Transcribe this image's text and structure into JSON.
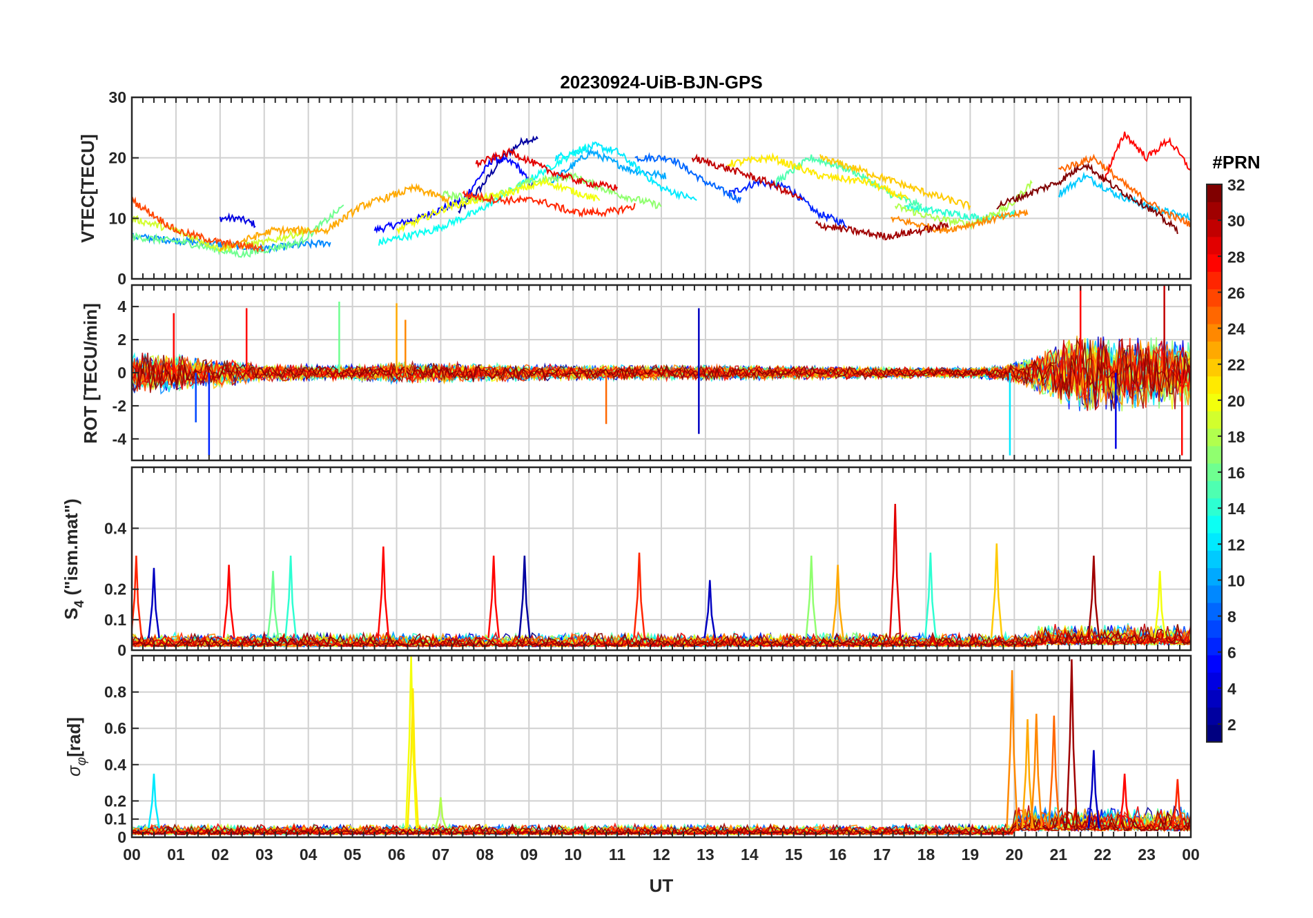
{
  "chart_data": {
    "type": "line",
    "title": "20230924-UiB-BJN-GPS",
    "xlabel": "UT",
    "x_range_hours": [
      0,
      24
    ],
    "x_tick_labels": [
      "00",
      "01",
      "02",
      "03",
      "04",
      "05",
      "06",
      "07",
      "08",
      "09",
      "10",
      "11",
      "12",
      "13",
      "14",
      "15",
      "16",
      "17",
      "18",
      "19",
      "20",
      "21",
      "22",
      "23",
      "00"
    ],
    "grid": true,
    "colorbar": {
      "label": "#PRN",
      "range": [
        1,
        32
      ],
      "tick_labels": [
        "2",
        "4",
        "6",
        "8",
        "10",
        "12",
        "14",
        "16",
        "18",
        "20",
        "22",
        "24",
        "26",
        "28",
        "30",
        "32"
      ],
      "colormap": "jet"
    },
    "panels": [
      {
        "id": "vtec",
        "ylabel": "VTEC[TECU]",
        "ylim": [
          0,
          30
        ],
        "y_ticks": [
          0,
          10,
          20,
          30
        ],
        "y_tick_labels": [
          "0",
          "10",
          "20",
          "30"
        ],
        "series": [
          {
            "prn": 2,
            "x": [
              7.4,
              7.9,
              8.4,
              8.9,
              9.2
            ],
            "y": [
              11,
              15,
              20,
              23,
              23
            ]
          },
          {
            "prn": 4,
            "x": [
              2.0,
              2.4,
              2.8
            ],
            "y": [
              10,
              10,
              9
            ]
          },
          {
            "prn": 5,
            "x": [
              5.5,
              6.5,
              7.5,
              8.2,
              8.7,
              9.1
            ],
            "y": [
              8,
              10,
              13,
              20,
              19,
              15
            ]
          },
          {
            "prn": 6,
            "x": [
              13.5,
              14.2,
              14.9,
              15.5,
              16.2
            ],
            "y": [
              14,
              16,
              15,
              11,
              9
            ]
          },
          {
            "prn": 8,
            "x": [
              11.4,
              12.2,
              13.0,
              13.8
            ],
            "y": [
              20,
              20,
              16,
              13
            ]
          },
          {
            "prn": 9,
            "x": [
              0.0,
              1.5,
              3.0,
              4.5
            ],
            "y": [
              7,
              6,
              5,
              6
            ]
          },
          {
            "prn": 10,
            "x": [
              9.5,
              10.4,
              11.3,
              12.1
            ],
            "y": [
              16,
              21,
              18,
              17
            ]
          },
          {
            "prn": 11,
            "x": [
              21.0,
              21.6,
              22.3,
              23.0,
              24.0
            ],
            "y": [
              14,
              17,
              14,
              12,
              10
            ]
          },
          {
            "prn": 12,
            "x": [
              9.6,
              10.5,
              11.0,
              12.0,
              12.8
            ],
            "y": [
              20,
              22,
              21,
              15,
              13
            ]
          },
          {
            "prn": 13,
            "x": [
              5.6,
              6.8,
              7.8,
              8.7,
              9.6,
              10.3
            ],
            "y": [
              6,
              8,
              11,
              15,
              19,
              22
            ]
          },
          {
            "prn": 14,
            "x": [
              17.5,
              18.4,
              19.3,
              20.0
            ],
            "y": [
              12,
              11,
              10,
              11
            ]
          },
          {
            "prn": 15,
            "x": [
              14.6,
              15.4,
              16.3,
              17.2,
              17.9
            ],
            "y": [
              16,
              20,
              18,
              14,
              12
            ]
          },
          {
            "prn": 16,
            "x": [
              0.0,
              1.2,
              2.5,
              3.8,
              4.8
            ],
            "y": [
              7,
              6,
              4,
              6,
              12
            ]
          },
          {
            "prn": 17,
            "x": [
              7.0,
              8.0,
              9.0,
              10.0,
              11.0,
              12.0
            ],
            "y": [
              14,
              13,
              16,
              17,
              14,
              12
            ]
          },
          {
            "prn": 18,
            "x": [
              17.3,
              18.2,
              19.0,
              19.9,
              20.4
            ],
            "y": [
              12,
              10,
              9,
              12,
              16
            ]
          },
          {
            "prn": 19,
            "x": [
              0.0,
              1.0,
              2.0,
              3.0,
              4.0
            ],
            "y": [
              10,
              8,
              5,
              6,
              8
            ]
          },
          {
            "prn": 20,
            "x": [
              6.0,
              7.2,
              8.4,
              9.4,
              10.6
            ],
            "y": [
              8,
              12,
              14,
              16,
              13
            ]
          },
          {
            "prn": 21,
            "x": [
              13.5,
              14.5,
              15.6,
              16.7,
              17.6
            ],
            "y": [
              19,
              20,
              17,
              16,
              13
            ]
          },
          {
            "prn": 22,
            "x": [
              15.6,
              16.5,
              17.3,
              18.1,
              19.0
            ],
            "y": [
              20,
              18,
              16,
              14,
              12
            ]
          },
          {
            "prn": 23,
            "x": [
              2.0,
              3.2,
              4.4,
              5.2,
              6.4,
              7.2
            ],
            "y": [
              5,
              8,
              8,
              12,
              15,
              13
            ]
          },
          {
            "prn": 24,
            "x": [
              17.2,
              18.4,
              19.6,
              20.3
            ],
            "y": [
              10,
              8,
              10,
              11
            ]
          },
          {
            "prn": 25,
            "x": [
              21.0,
              21.8,
              22.6,
              23.4,
              24.0
            ],
            "y": [
              18,
              20,
              15,
              11,
              9
            ]
          },
          {
            "prn": 26,
            "x": [
              0.0,
              1.0,
              2.0,
              3.0
            ],
            "y": [
              13,
              8,
              6,
              5
            ]
          },
          {
            "prn": 27,
            "x": [
              7.5,
              8.3,
              9.2,
              10.0,
              10.8,
              11.4
            ],
            "y": [
              14,
              13,
              13,
              11,
              11,
              12
            ]
          },
          {
            "prn": 28,
            "x": [
              22.0,
              22.5,
              23.0,
              23.5,
              24.0
            ],
            "y": [
              16,
              24,
              20,
              23,
              18
            ]
          },
          {
            "prn": 29,
            "x": [
              7.8,
              8.6,
              9.4,
              10.2,
              11.0
            ],
            "y": [
              19,
              21,
              18,
              16,
              15
            ]
          },
          {
            "prn": 30,
            "x": [
              12.7,
              13.6,
              14.4,
              15.2
            ],
            "y": [
              20,
              18,
              16,
              13
            ]
          },
          {
            "prn": 31,
            "x": [
              15.5,
              16.3,
              17.1,
              17.9,
              18.5
            ],
            "y": [
              9,
              8,
              7,
              8,
              9
            ]
          },
          {
            "prn": 32,
            "x": [
              19.6,
              20.3,
              21.0,
              21.6,
              22.3,
              23.0,
              23.7
            ],
            "y": [
              12,
              14,
              16,
              19,
              15,
              12,
              8
            ]
          }
        ]
      },
      {
        "id": "rot",
        "ylabel": "ROT [TECU/min]",
        "ylim": [
          -5.3,
          5.3
        ],
        "y_ticks": [
          -4,
          -2,
          0,
          2,
          4
        ],
        "y_tick_labels": [
          "-4",
          "-2",
          "0",
          "2",
          "4"
        ],
        "noise_profile": {
          "hours": [
            0,
            1,
            2,
            3,
            5,
            6,
            8,
            10,
            13,
            17,
            19,
            19.8,
            20.5,
            21,
            21.5,
            22,
            23,
            24
          ],
          "amplitude": [
            1.4,
            1.2,
            0.9,
            0.6,
            0.5,
            0.7,
            0.6,
            0.5,
            0.5,
            0.4,
            0.35,
            0.5,
            1.2,
            2.0,
            2.6,
            2.4,
            2.4,
            2.2
          ]
        },
        "spikes": [
          {
            "x": 0.95,
            "y": 3.6,
            "prn": 28
          },
          {
            "x": 1.45,
            "y": -3.0,
            "prn": 7
          },
          {
            "x": 1.75,
            "y": -5.0,
            "prn": 6
          },
          {
            "x": 2.6,
            "y": 3.9,
            "prn": 28
          },
          {
            "x": 4.7,
            "y": 4.3,
            "prn": 16
          },
          {
            "x": 6.0,
            "y": 4.2,
            "prn": 23
          },
          {
            "x": 6.2,
            "y": 3.2,
            "prn": 24
          },
          {
            "x": 12.85,
            "y": 3.9,
            "prn": 3
          },
          {
            "x": 12.85,
            "y": -3.7,
            "prn": 3
          },
          {
            "x": 10.75,
            "y": -3.1,
            "prn": 25
          },
          {
            "x": 19.9,
            "y": -5.0,
            "prn": 12
          },
          {
            "x": 21.5,
            "y": 5.3,
            "prn": 28
          },
          {
            "x": 22.3,
            "y": -4.6,
            "prn": 4
          },
          {
            "x": 23.4,
            "y": 5.3,
            "prn": 30
          },
          {
            "x": 23.8,
            "y": -5.0,
            "prn": 28
          }
        ]
      },
      {
        "id": "s4",
        "ylabel": "S4 (\"ism.mat\")",
        "ylabel_main": "S",
        "ylabel_sub": "4",
        "ylabel_tail": " (\"ism.mat\")",
        "ylim": [
          0,
          0.6
        ],
        "y_ticks": [
          0,
          0.1,
          0.2,
          0.4
        ],
        "y_tick_labels": [
          "0",
          "0.1",
          "0.2",
          "0.4"
        ],
        "baseline": 0.04,
        "peaks": [
          {
            "x": 0.1,
            "y": 0.31,
            "prn": 27
          },
          {
            "x": 0.5,
            "y": 0.27,
            "prn": 3
          },
          {
            "x": 2.2,
            "y": 0.28,
            "prn": 28
          },
          {
            "x": 3.2,
            "y": 0.26,
            "prn": 16
          },
          {
            "x": 3.6,
            "y": 0.31,
            "prn": 14
          },
          {
            "x": 5.7,
            "y": 0.34,
            "prn": 28
          },
          {
            "x": 8.2,
            "y": 0.31,
            "prn": 28
          },
          {
            "x": 8.9,
            "y": 0.31,
            "prn": 2
          },
          {
            "x": 11.5,
            "y": 0.32,
            "prn": 27
          },
          {
            "x": 13.1,
            "y": 0.23,
            "prn": 3
          },
          {
            "x": 15.4,
            "y": 0.31,
            "prn": 17
          },
          {
            "x": 16.0,
            "y": 0.28,
            "prn": 23
          },
          {
            "x": 17.3,
            "y": 0.48,
            "prn": 29
          },
          {
            "x": 18.1,
            "y": 0.32,
            "prn": 14
          },
          {
            "x": 19.6,
            "y": 0.35,
            "prn": 22
          },
          {
            "x": 21.8,
            "y": 0.31,
            "prn": 31
          },
          {
            "x": 23.3,
            "y": 0.26,
            "prn": 20
          }
        ]
      },
      {
        "id": "sigma_phi",
        "ylabel": "σφ[rad]",
        "ylabel_main": "σ",
        "ylabel_sub": "φ",
        "ylabel_tail": "[rad]",
        "ylim": [
          0,
          1.0
        ],
        "y_ticks": [
          0,
          0.1,
          0.2,
          0.4,
          0.6,
          0.8
        ],
        "y_tick_labels": [
          "0",
          "0.1",
          "0.2",
          "0.4",
          "0.6",
          "0.8"
        ],
        "baseline": 0.05,
        "peaks": [
          {
            "x": 0.5,
            "y": 0.35,
            "prn": 12
          },
          {
            "x": 6.33,
            "y": 1.0,
            "prn": 20
          },
          {
            "x": 6.37,
            "y": 0.82,
            "prn": 21
          },
          {
            "x": 7.0,
            "y": 0.22,
            "prn": 18
          },
          {
            "x": 19.95,
            "y": 0.92,
            "prn": 24
          },
          {
            "x": 20.3,
            "y": 0.65,
            "prn": 23
          },
          {
            "x": 20.5,
            "y": 0.68,
            "prn": 24
          },
          {
            "x": 20.9,
            "y": 0.67,
            "prn": 25
          },
          {
            "x": 21.3,
            "y": 0.98,
            "prn": 31
          },
          {
            "x": 21.8,
            "y": 0.48,
            "prn": 3
          },
          {
            "x": 22.5,
            "y": 0.35,
            "prn": 28
          },
          {
            "x": 23.7,
            "y": 0.32,
            "prn": 27
          }
        ]
      }
    ]
  }
}
